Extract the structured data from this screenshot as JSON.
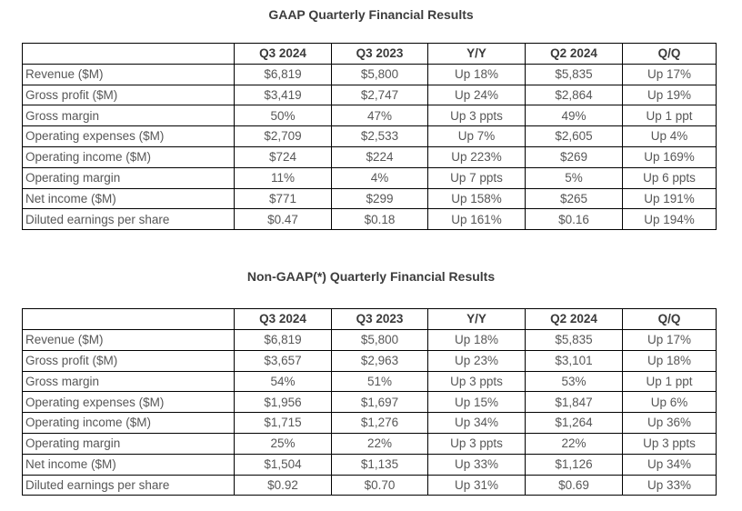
{
  "page": {
    "background": "#ffffff"
  },
  "colors": {
    "border": "#000000",
    "title_text": "#3d3d3d",
    "header_text": "#3a3a3a",
    "body_text": "#575757"
  },
  "chart_data": [
    {
      "type": "table",
      "title": "GAAP Quarterly Financial Results",
      "columns": [
        "",
        "Q3 2024",
        "Q3 2023",
        "Y/Y",
        "Q2 2024",
        "Q/Q"
      ],
      "rows": [
        [
          "Revenue ($M)",
          "$6,819",
          "$5,800",
          "Up 18%",
          "$5,835",
          "Up 17%"
        ],
        [
          "Gross profit ($M)",
          "$3,419",
          "$2,747",
          "Up 24%",
          "$2,864",
          "Up 19%"
        ],
        [
          "Gross margin",
          "50%",
          "47%",
          "Up 3 ppts",
          "49%",
          "Up 1 ppt"
        ],
        [
          "Operating expenses ($M)",
          "$2,709",
          "$2,533",
          "Up 7%",
          "$2,605",
          "Up 4%"
        ],
        [
          "Operating income ($M)",
          "$724",
          "$224",
          "Up 223%",
          "$269",
          "Up 169%"
        ],
        [
          "Operating margin",
          "11%",
          "4%",
          "Up 7 ppts",
          "5%",
          "Up 6 ppts"
        ],
        [
          "Net income ($M)",
          "$771",
          "$299",
          "Up 158%",
          "$265",
          "Up 191%"
        ],
        [
          "Diluted earnings per share",
          "$0.47",
          "$0.18",
          "Up 161%",
          "$0.16",
          "Up 194%"
        ]
      ]
    },
    {
      "type": "table",
      "title": "Non-GAAP(*) Quarterly Financial Results",
      "columns": [
        "",
        "Q3 2024",
        "Q3 2023",
        "Y/Y",
        "Q2 2024",
        "Q/Q"
      ],
      "rows": [
        [
          "Revenue ($M)",
          "$6,819",
          "$5,800",
          "Up 18%",
          "$5,835",
          "Up 17%"
        ],
        [
          "Gross profit ($M)",
          "$3,657",
          "$2,963",
          "Up 23%",
          "$3,101",
          "Up 18%"
        ],
        [
          "Gross margin",
          "54%",
          "51%",
          "Up 3 ppts",
          "53%",
          "Up 1 ppt"
        ],
        [
          "Operating expenses ($M)",
          "$1,956",
          "$1,697",
          "Up 15%",
          "$1,847",
          "Up 6%"
        ],
        [
          "Operating income ($M)",
          "$1,715",
          "$1,276",
          "Up 34%",
          "$1,264",
          "Up 36%"
        ],
        [
          "Operating margin",
          "25%",
          "22%",
          "Up 3 ppts",
          "22%",
          "Up 3 ppts"
        ],
        [
          "Net income ($M)",
          "$1,504",
          "$1,135",
          "Up 33%",
          "$1,126",
          "Up 34%"
        ],
        [
          "Diluted earnings per share",
          "$0.92",
          "$0.70",
          "Up 31%",
          "$0.69",
          "Up 33%"
        ]
      ]
    }
  ]
}
